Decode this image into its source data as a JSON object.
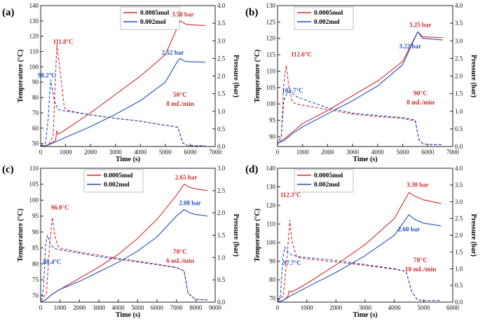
{
  "figure": {
    "colors": {
      "red": "#d42a2a",
      "blue": "#1f4fc6",
      "axis": "#222222"
    },
    "legend_entries": [
      "0.0005mol",
      "0.002mol"
    ]
  },
  "chart_data": [
    {
      "panel": "(a)",
      "type": "line",
      "xlabel": "Time (s)",
      "ylabel_left": "Temperature (°C)",
      "ylabel_right": "Pressure (bar)",
      "xlim": [
        0,
        7000
      ],
      "ylim_left": [
        48,
        140
      ],
      "ylim_right": [
        0,
        4.0
      ],
      "xticks": [
        "0",
        "1000",
        "2000",
        "3000",
        "4000",
        "5000",
        "6000",
        "7000"
      ],
      "yticks_left": [
        "50",
        "60",
        "70",
        "80",
        "90",
        "100",
        "110",
        "120",
        "130",
        "140"
      ],
      "yticks_right": [
        "0.0",
        "0.5",
        "1.0",
        "1.5",
        "2.0",
        "2.5",
        "3.0",
        "3.5",
        "4.0"
      ],
      "condition": [
        "50°C",
        "8 mL/min"
      ],
      "series": [
        {
          "name": "0.0005mol",
          "color": "red",
          "style": "solid",
          "axis": "left",
          "x": [
            0,
            300,
            600,
            650,
            700,
            1000,
            2000,
            3000,
            4000,
            5000,
            5600,
            5800,
            6000,
            6600
          ],
          "y": [
            48,
            49,
            52,
            58,
            56,
            59,
            70,
            82,
            94,
            108,
            130,
            128,
            127.5,
            127
          ]
        },
        {
          "name": "0.002mol",
          "color": "blue",
          "style": "solid",
          "axis": "left",
          "x": [
            0,
            300,
            600,
            1000,
            2000,
            3000,
            4000,
            5000,
            5500,
            5600,
            5800,
            6600
          ],
          "y": [
            48,
            49,
            51,
            54,
            61,
            69,
            78,
            90,
            104,
            105.5,
            103.5,
            103
          ]
        },
        {
          "name": "0.0005mol pressure",
          "color": "red",
          "style": "dashed",
          "axis": "right",
          "x": [
            0,
            300,
            500,
            650,
            800,
            950,
            1100,
            2000,
            3000,
            4000,
            5000,
            5500,
            5700,
            5900,
            6200,
            6600
          ],
          "y": [
            0.02,
            0.03,
            0.3,
            2.9,
            2.0,
            1.1,
            1.02,
            0.9,
            0.8,
            0.72,
            0.6,
            0.55,
            0.1,
            0.03,
            0.02,
            0.02
          ]
        },
        {
          "name": "0.002mol pressure",
          "color": "blue",
          "style": "dashed",
          "axis": "right",
          "x": [
            0,
            200,
            300,
            400,
            550,
            700,
            900,
            2000,
            3000,
            4000,
            5000,
            5500,
            5700,
            5900,
            6600
          ],
          "y": [
            0.02,
            0.1,
            0.8,
            1.9,
            1.3,
            1.05,
            1.02,
            0.9,
            0.8,
            0.72,
            0.6,
            0.55,
            0.1,
            0.03,
            0.02
          ]
        }
      ],
      "annotations": [
        {
          "text": "3.58 bar",
          "color": "red",
          "x": 5700,
          "y": 133
        },
        {
          "text": "2.52 bar",
          "color": "blue",
          "x": 5300,
          "y": 108
        },
        {
          "text": "111.8°C",
          "color": "red",
          "x": 900,
          "y": 115
        },
        {
          "text": "90.2°C",
          "color": "blue",
          "x": 250,
          "y": 93
        }
      ]
    },
    {
      "panel": "(b)",
      "type": "line",
      "xlabel": "Time (s)",
      "ylabel_left": "Temperature (°C)",
      "ylabel_right": "Pressure (bar)",
      "xlim": [
        0,
        7000
      ],
      "ylim_left": [
        87,
        130
      ],
      "ylim_right": [
        0,
        4.0
      ],
      "xticks": [
        "0",
        "1000",
        "2000",
        "3000",
        "4000",
        "5000",
        "6000",
        "7000"
      ],
      "yticks_left": [
        "90",
        "95",
        "100",
        "105",
        "110",
        "115",
        "120",
        "125",
        "130"
      ],
      "yticks_right": [
        "0.0",
        "0.5",
        "1.0",
        "1.5",
        "2.0",
        "2.5",
        "3.0",
        "3.5",
        "4.0"
      ],
      "condition": [
        "90°C",
        "8 mL/min"
      ],
      "series": [
        {
          "name": "0.0005mol",
          "color": "red",
          "style": "solid",
          "axis": "left",
          "x": [
            0,
            300,
            600,
            1000,
            2000,
            3000,
            4000,
            5000,
            5600,
            5800,
            6600
          ],
          "y": [
            88,
            89.5,
            91.5,
            94,
            98,
            102.5,
            107,
            113,
            122,
            120.5,
            120.2
          ]
        },
        {
          "name": "0.002mol",
          "color": "blue",
          "style": "solid",
          "axis": "left",
          "x": [
            0,
            300,
            600,
            1000,
            2000,
            3000,
            4000,
            5000,
            5600,
            5800,
            6600
          ],
          "y": [
            88,
            89,
            91,
            93,
            97,
            101,
            105.5,
            112,
            122,
            120,
            119.5
          ]
        },
        {
          "name": "0.0005mol pressure",
          "color": "red",
          "style": "dashed",
          "axis": "right",
          "x": [
            0,
            150,
            250,
            350,
            450,
            600,
            800,
            2000,
            3000,
            4000,
            5000,
            5500,
            5650,
            5800,
            6000,
            6600
          ],
          "y": [
            0.05,
            0.3,
            1.8,
            2.3,
            1.7,
            1.25,
            1.2,
            1.05,
            0.92,
            0.85,
            0.8,
            0.72,
            0.2,
            0.08,
            0.06,
            0.05
          ]
        },
        {
          "name": "0.002mol pressure",
          "color": "blue",
          "style": "dashed",
          "axis": "right",
          "x": [
            0,
            150,
            250,
            400,
            600,
            800,
            2000,
            3000,
            4000,
            5000,
            5500,
            5650,
            5800,
            6000,
            6600
          ],
          "y": [
            0.05,
            0.3,
            1.3,
            1.55,
            1.5,
            1.4,
            1.1,
            0.95,
            0.88,
            0.82,
            0.75,
            0.2,
            0.08,
            0.06,
            0.05
          ]
        }
      ],
      "annotations": [
        {
          "text": "3.25 bar",
          "color": "red",
          "x": 5700,
          "y": 123.5
        },
        {
          "text": "3.22 bar",
          "color": "blue",
          "x": 5300,
          "y": 117
        },
        {
          "text": "112.6°C",
          "color": "red",
          "x": 950,
          "y": 114.5
        },
        {
          "text": "105.7°C",
          "color": "blue",
          "x": 600,
          "y": 103.5
        }
      ]
    },
    {
      "panel": "(c)",
      "type": "line",
      "xlabel": "Time (s)",
      "ylabel_left": "Temperature (°C)",
      "ylabel_right": "Pressure (bar)",
      "xlim": [
        0,
        9000
      ],
      "ylim_left": [
        68,
        110
      ],
      "ylim_right": [
        0,
        3.0
      ],
      "xticks": [
        "0",
        "1000",
        "2000",
        "3000",
        "4000",
        "5000",
        "6000",
        "7000",
        "8000",
        "9000"
      ],
      "yticks_left": [
        "70",
        "75",
        "80",
        "85",
        "90",
        "95",
        "100",
        "105",
        "110"
      ],
      "yticks_right": [
        "0.0",
        "0.5",
        "1.0",
        "1.5",
        "2.0",
        "2.5",
        "3.0"
      ],
      "condition": [
        "70°C",
        "6 mL/min"
      ],
      "series": [
        {
          "name": "0.0005mol",
          "color": "red",
          "style": "solid",
          "axis": "left",
          "x": [
            0,
            300,
            600,
            1000,
            2000,
            3000,
            4000,
            5000,
            6000,
            7000,
            7400,
            7700,
            8000,
            8600
          ],
          "y": [
            68,
            69,
            70.5,
            72,
            75.5,
            79,
            83,
            88,
            94,
            101.5,
            105,
            104,
            103.5,
            103
          ]
        },
        {
          "name": "0.002mol",
          "color": "blue",
          "style": "solid",
          "axis": "left",
          "x": [
            0,
            300,
            600,
            1000,
            2000,
            3000,
            4000,
            5000,
            6000,
            7000,
            7400,
            7700,
            8000,
            8600
          ],
          "y": [
            68,
            69,
            70.5,
            72,
            74.5,
            77.5,
            80.5,
            84,
            88.5,
            95,
            97,
            96,
            95.5,
            95
          ]
        },
        {
          "name": "0.0005mol pressure",
          "color": "red",
          "style": "dashed",
          "axis": "right",
          "x": [
            0,
            300,
            450,
            600,
            750,
            900,
            1100,
            2000,
            3000,
            4000,
            5000,
            6000,
            7000,
            7400,
            7600,
            8000,
            8600
          ],
          "y": [
            0.03,
            0.2,
            1.2,
            1.9,
            1.45,
            1.25,
            1.2,
            1.12,
            1.05,
            0.98,
            0.92,
            0.85,
            0.78,
            0.7,
            0.2,
            0.06,
            0.05
          ]
        },
        {
          "name": "0.002mol pressure",
          "color": "blue",
          "style": "dashed",
          "axis": "right",
          "x": [
            0,
            150,
            250,
            350,
            500,
            700,
            900,
            2000,
            3000,
            4000,
            5000,
            6000,
            7000,
            7400,
            7600,
            8000,
            8600
          ],
          "y": [
            0.03,
            0.3,
            1.25,
            1.5,
            1.3,
            1.2,
            1.18,
            1.1,
            1.02,
            0.96,
            0.9,
            0.84,
            0.77,
            0.7,
            0.2,
            0.06,
            0.05
          ]
        }
      ],
      "annotations": [
        {
          "text": "2.65 bar",
          "color": "red",
          "x": 7500,
          "y": 106.5
        },
        {
          "text": "2.08 bar",
          "color": "blue",
          "x": 7700,
          "y": 98.5
        },
        {
          "text": "96.0°C",
          "color": "red",
          "x": 1000,
          "y": 97
        },
        {
          "text": "88.4°C",
          "color": "blue",
          "x": 600,
          "y": 80
        }
      ]
    },
    {
      "panel": "(d)",
      "type": "line",
      "xlabel": "Time (s)",
      "ylabel_left": "Temperature (°C)",
      "ylabel_right": "Pressure (bar)",
      "xlim": [
        0,
        6000
      ],
      "ylim_left": [
        68,
        140
      ],
      "ylim_right": [
        0,
        4.0
      ],
      "xticks": [
        "0",
        "1000",
        "2000",
        "3000",
        "4000",
        "5000",
        "6000"
      ],
      "yticks_left": [
        "70",
        "80",
        "90",
        "100",
        "110",
        "120",
        "130",
        "140"
      ],
      "yticks_right": [
        "0.0",
        "0.5",
        "1.0",
        "1.5",
        "2.0",
        "2.5",
        "3.0",
        "3.5",
        "4.0"
      ],
      "condition": [
        "70°C",
        "10 mL/min"
      ],
      "series": [
        {
          "name": "0.0005mol",
          "color": "red",
          "style": "solid",
          "axis": "left",
          "x": [
            0,
            200,
            350,
            400,
            500,
            1000,
            2000,
            3000,
            4000,
            4500,
            4700,
            5000,
            5600
          ],
          "y": [
            68,
            69,
            71,
            74,
            73.5,
            78,
            88,
            99,
            113,
            127,
            125,
            123,
            121
          ]
        },
        {
          "name": "0.002mol",
          "color": "blue",
          "style": "solid",
          "axis": "left",
          "x": [
            0,
            200,
            400,
            1000,
            2000,
            3000,
            4000,
            4500,
            4700,
            5000,
            5600
          ],
          "y": [
            68,
            69,
            71,
            76,
            84,
            93,
            104,
            115,
            112.5,
            110.5,
            109
          ]
        },
        {
          "name": "0.0005mol pressure",
          "color": "red",
          "style": "dashed",
          "axis": "right",
          "x": [
            0,
            200,
            330,
            420,
            500,
            650,
            900,
            2000,
            3000,
            4000,
            4400,
            4600,
            4800,
            5000,
            5600
          ],
          "y": [
            0.03,
            0.2,
            1.4,
            2.45,
            1.8,
            1.35,
            1.3,
            1.2,
            1.1,
            0.98,
            0.92,
            0.3,
            0.06,
            0.05,
            0.05
          ]
        },
        {
          "name": "0.002mol pressure",
          "color": "blue",
          "style": "dashed",
          "axis": "right",
          "x": [
            0,
            100,
            180,
            250,
            350,
            500,
            800,
            2000,
            3000,
            4000,
            4400,
            4600,
            4800,
            5000,
            5600
          ],
          "y": [
            0.03,
            0.2,
            1.3,
            1.65,
            1.5,
            1.4,
            1.35,
            1.25,
            1.12,
            1.0,
            0.92,
            0.3,
            0.06,
            0.05,
            0.05
          ]
        }
      ],
      "annotations": [
        {
          "text": "3.30 bar",
          "color": "red",
          "x": 4800,
          "y": 130
        },
        {
          "text": "2.60 bar",
          "color": "blue",
          "x": 4500,
          "y": 106
        },
        {
          "text": "112.3°C",
          "color": "red",
          "x": 450,
          "y": 124.5
        },
        {
          "text": "97.7°C",
          "color": "blue",
          "x": 500,
          "y": 88
        }
      ]
    }
  ]
}
